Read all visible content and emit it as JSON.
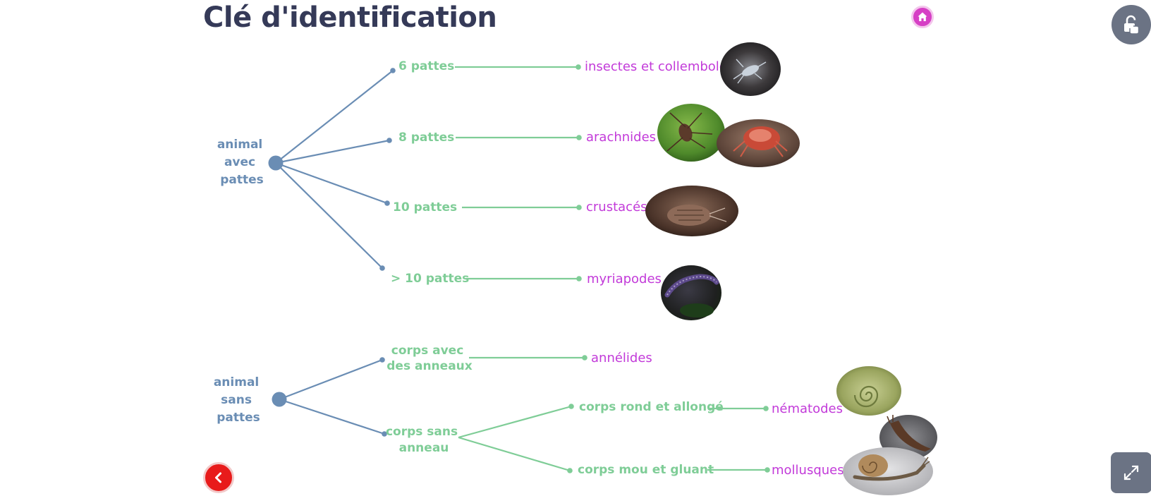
{
  "title": "Clé d'identification",
  "nav": {
    "home_icon": "home-icon",
    "lock_icon": "lock-icon",
    "back_icon": "chevron-left-icon",
    "expand_icon": "expand-icon"
  },
  "colors": {
    "title": "#353a58",
    "root": "#6a8db4",
    "criteria": "#7fcd97",
    "group": "#c23ad9",
    "home": "#d63fc5",
    "back": "#e81b1b",
    "panel_button": "#6b7384"
  },
  "tree": {
    "with_legs": {
      "label_lines": [
        "animal",
        "avec",
        "pattes"
      ],
      "branches": [
        {
          "criterion": "6 pattes",
          "group": "insectes et collemboles"
        },
        {
          "criterion": "8 pattes",
          "group": "arachnides"
        },
        {
          "criterion": "10 pattes",
          "group": "crustacés"
        },
        {
          "criterion": "> 10 pattes",
          "group": "myriapodes"
        }
      ]
    },
    "without_legs": {
      "label_lines": [
        "animal",
        "sans",
        "pattes"
      ],
      "ringed": {
        "criterion_lines": [
          "corps avec",
          "des anneaux"
        ],
        "group": "annélides"
      },
      "unringed": {
        "criterion_lines": [
          "corps sans",
          "anneau"
        ],
        "sub_branches": [
          {
            "criterion": "corps rond et allongé",
            "group": "nématodes"
          },
          {
            "criterion": "corps mou et gluant",
            "group": "mollusques"
          }
        ]
      }
    }
  }
}
